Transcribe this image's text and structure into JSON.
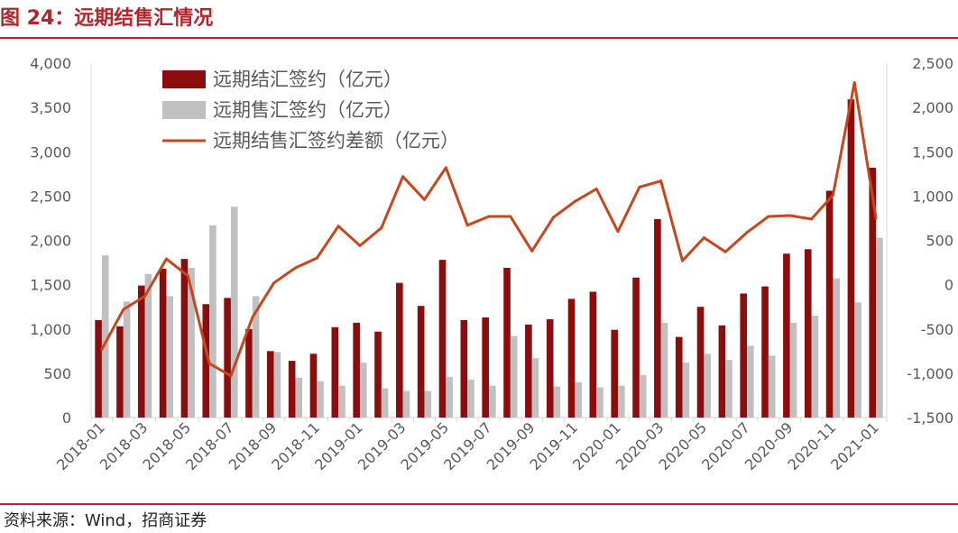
{
  "figure": {
    "title": "图 24：远期结售汇情况",
    "source": "资料来源：Wind，招商证券"
  },
  "colors": {
    "settlement": "#8b0d0d",
    "sales": "#c0c0c0",
    "difference": "#c8461d",
    "accent": "#b3262b",
    "axis_text": "#595959",
    "axis_line": "#d9d9d9"
  },
  "chart_data": {
    "type": "bar",
    "title": "远期结售汇情况",
    "categories": [
      "2018-01",
      "2018-02",
      "2018-03",
      "2018-04",
      "2018-05",
      "2018-06",
      "2018-07",
      "2018-08",
      "2018-09",
      "2018-10",
      "2018-11",
      "2018-12",
      "2019-01",
      "2019-02",
      "2019-03",
      "2019-04",
      "2019-05",
      "2019-06",
      "2019-07",
      "2019-08",
      "2019-09",
      "2019-10",
      "2019-11",
      "2019-12",
      "2020-01",
      "2020-02",
      "2020-03",
      "2020-04",
      "2020-05",
      "2020-06",
      "2020-07",
      "2020-08",
      "2020-09",
      "2020-10",
      "2020-11",
      "2020-12",
      "2021-01"
    ],
    "x_tick_labels": [
      "2018-01",
      "2018-03",
      "2018-05",
      "2018-07",
      "2018-09",
      "2018-11",
      "2019-01",
      "2019-03",
      "2019-05",
      "2019-07",
      "2019-09",
      "2019-11",
      "2020-01",
      "2020-03",
      "2020-05",
      "2020-07",
      "2020-09",
      "2020-11",
      "2021-01"
    ],
    "series": [
      {
        "name": "远期结汇签约（亿元）",
        "type": "bar",
        "axis": "left",
        "values": [
          1100,
          1030,
          1490,
          1680,
          1790,
          1280,
          1350,
          1000,
          750,
          640,
          720,
          1020,
          1070,
          970,
          1520,
          1260,
          1780,
          1100,
          1130,
          1690,
          1050,
          1110,
          1340,
          1420,
          990,
          1580,
          2240,
          910,
          1250,
          1040,
          1400,
          1480,
          1850,
          1900,
          2560,
          3590,
          2820
        ]
      },
      {
        "name": "远期售汇签约（亿元）",
        "type": "bar",
        "axis": "left",
        "values": [
          1830,
          1310,
          1620,
          1370,
          1690,
          2170,
          2380,
          1370,
          740,
          450,
          410,
          360,
          620,
          330,
          300,
          300,
          460,
          430,
          360,
          920,
          670,
          350,
          400,
          340,
          360,
          480,
          1070,
          620,
          720,
          650,
          810,
          700,
          1070,
          1150,
          1570,
          1300,
          2030
        ]
      },
      {
        "name": "远期结售汇签约差额（亿元）",
        "type": "line",
        "axis": "right",
        "values": [
          -730,
          -280,
          -130,
          290,
          100,
          -890,
          -1030,
          -370,
          20,
          190,
          300,
          660,
          440,
          640,
          1220,
          960,
          1320,
          670,
          770,
          770,
          380,
          760,
          940,
          1080,
          600,
          1100,
          1170,
          270,
          530,
          370,
          590,
          770,
          780,
          740,
          1010,
          2280,
          750
        ]
      }
    ],
    "y_left": {
      "min": 0,
      "max": 4000,
      "step": 500,
      "tick_labels": [
        "0",
        "500",
        "1,000",
        "1,500",
        "2,000",
        "2,500",
        "3,000",
        "3,500",
        "4,000"
      ]
    },
    "y_right": {
      "min": -1500,
      "max": 2500,
      "step": 500,
      "tick_labels": [
        "-1,500",
        "-1,000",
        "-500",
        "0",
        "500",
        "1,000",
        "1,500",
        "2,000",
        "2,500"
      ]
    },
    "legend_position": "top-left",
    "grid": false
  }
}
